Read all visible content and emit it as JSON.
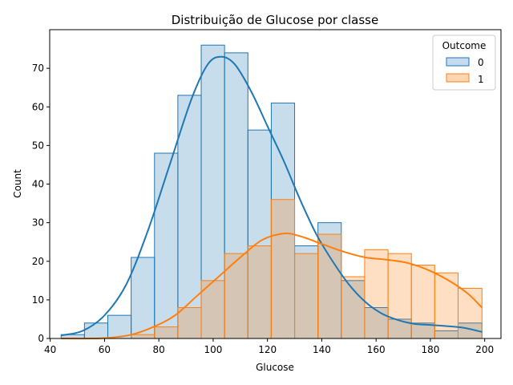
{
  "chart_data": {
    "type": "histogram",
    "title": "Distribuição de Glucose por classe",
    "xlabel": "Glucose",
    "ylabel": "Count",
    "xlim": [
      39.8,
      206.0
    ],
    "ylim": [
      0,
      80
    ],
    "xticks": [
      40,
      60,
      80,
      100,
      120,
      140,
      160,
      180,
      200
    ],
    "yticks": [
      0,
      10,
      20,
      30,
      40,
      50,
      60,
      70
    ],
    "grid": false,
    "legend": {
      "title": "Outcome",
      "placement": "top-right"
    },
    "bin_edges": [
      44,
      52.6,
      61.2,
      69.8,
      78.4,
      87.0,
      95.6,
      104.2,
      112.8,
      121.4,
      130.0,
      138.6,
      147.2,
      155.8,
      164.4,
      173.0,
      181.6,
      190.2,
      199
    ],
    "series": [
      {
        "name": "0",
        "color": "#1f77b4",
        "fill": "#c6dbef",
        "counts": [
          1,
          4,
          6,
          21,
          48,
          63,
          76,
          74,
          54,
          61,
          24,
          30,
          15,
          8,
          5,
          4,
          2,
          4
        ],
        "kde": [
          [
            44,
            0.8
          ],
          [
            52,
            2
          ],
          [
            60,
            6
          ],
          [
            68,
            14
          ],
          [
            76,
            28
          ],
          [
            84,
            45
          ],
          [
            92,
            62
          ],
          [
            98,
            71
          ],
          [
            103,
            73
          ],
          [
            108,
            71
          ],
          [
            114,
            64
          ],
          [
            120,
            55
          ],
          [
            126,
            46
          ],
          [
            132,
            36
          ],
          [
            138,
            27
          ],
          [
            144,
            20
          ],
          [
            150,
            14
          ],
          [
            156,
            9.5
          ],
          [
            162,
            6.5
          ],
          [
            168,
            4.8
          ],
          [
            174,
            3.8
          ],
          [
            180,
            3.5
          ],
          [
            186,
            3.2
          ],
          [
            192,
            2.8
          ],
          [
            199,
            1.7
          ]
        ]
      },
      {
        "name": "1",
        "color": "#ff7f0e",
        "fill": "#fdd6b3",
        "counts": [
          0,
          0,
          0,
          1,
          3,
          8,
          15,
          22,
          24,
          36,
          22,
          27,
          16,
          23,
          22,
          19,
          17,
          13
        ],
        "kde": [
          [
            44,
            0
          ],
          [
            55,
            0
          ],
          [
            62,
            0.2
          ],
          [
            70,
            1
          ],
          [
            78,
            3
          ],
          [
            86,
            6
          ],
          [
            94,
            11
          ],
          [
            102,
            16
          ],
          [
            110,
            21
          ],
          [
            118,
            25.5
          ],
          [
            126,
            27.2
          ],
          [
            132,
            26.5
          ],
          [
            140,
            24.5
          ],
          [
            148,
            22.5
          ],
          [
            156,
            21
          ],
          [
            164,
            20.4
          ],
          [
            172,
            19.5
          ],
          [
            180,
            17.5
          ],
          [
            188,
            14.5
          ],
          [
            194,
            11.5
          ],
          [
            199,
            8
          ]
        ]
      }
    ]
  }
}
